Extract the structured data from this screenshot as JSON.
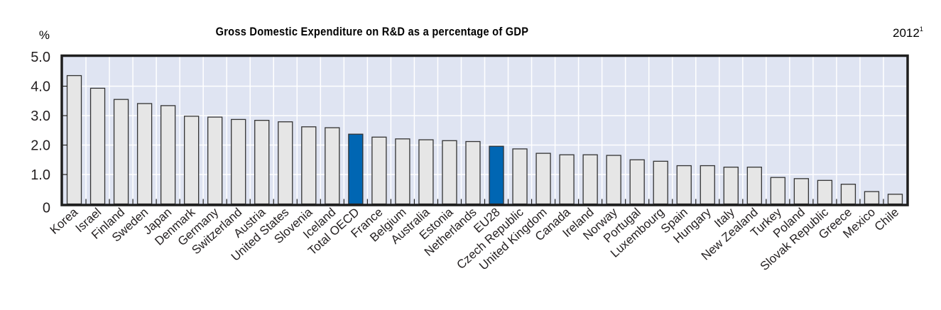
{
  "chart_data": {
    "type": "bar",
    "title": "Gross Domestic Expenditure on R&D as a percentage of GDP",
    "year_label": "2012",
    "year_footnote": "1",
    "ylabel": "%",
    "xlabel": "",
    "ylim": [
      0,
      5
    ],
    "yticks": [
      0,
      1,
      2,
      3,
      4,
      5
    ],
    "ytick_labels": [
      "0",
      "1.0",
      "2.0",
      "3.0",
      "4.0",
      "5.0"
    ],
    "grid": true,
    "legend": "none",
    "colors": {
      "plot_background": "#dfe4f2",
      "gridline": "#ffffff",
      "bar_default": "#e6e6e6",
      "bar_highlight": "#0066b3",
      "bar_outline": "#333333",
      "axis": "#1e1e1e"
    },
    "categories": [
      "Korea",
      "Israel",
      "Finland",
      "Sweden",
      "Japan",
      "Denmark",
      "Germany",
      "Switzerland",
      "Austria",
      "United States",
      "Slovenia",
      "Iceland",
      "Total OECD",
      "France",
      "Belgium",
      "Australia",
      "Estonia",
      "Netherlands",
      "EU28",
      "Czech Republic",
      "United Kingdom",
      "Canada",
      "Ireland",
      "Norway",
      "Portugal",
      "Luxembourg",
      "Spain",
      "Hungary",
      "Italy",
      "New Zealand",
      "Turkey",
      "Poland",
      "Slovak Republic",
      "Greece",
      "Mexico",
      "Chile"
    ],
    "values": [
      4.36,
      3.93,
      3.55,
      3.41,
      3.34,
      2.98,
      2.95,
      2.87,
      2.84,
      2.79,
      2.62,
      2.59,
      2.37,
      2.27,
      2.21,
      2.18,
      2.15,
      2.12,
      1.96,
      1.87,
      1.72,
      1.67,
      1.67,
      1.65,
      1.5,
      1.45,
      1.3,
      1.3,
      1.25,
      1.25,
      0.9,
      0.86,
      0.8,
      0.67,
      0.42,
      0.33
    ],
    "highlighted": [
      "Total OECD",
      "EU28"
    ]
  }
}
